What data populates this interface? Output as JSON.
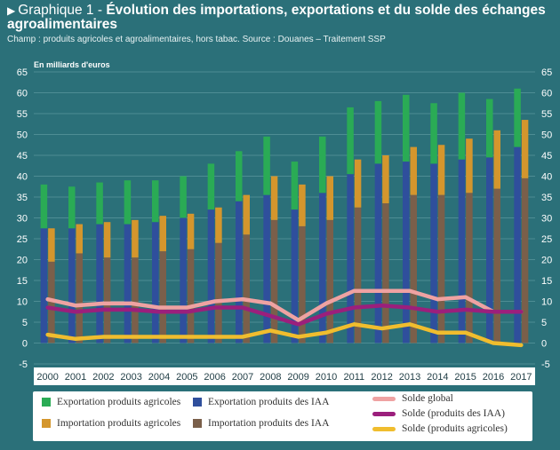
{
  "header": {
    "title_prefix": "Graphique 1 - ",
    "title_main": "Évolution des importations, exportations et du solde des échanges agroalimentaires",
    "subtitle": "Champ : produits agricoles et agroalimentaires, hors tabac. Source : Douanes – Traitement SSP",
    "arrow": "▶"
  },
  "chart_data": {
    "type": "bar",
    "ylabel": "En milliards d'euros",
    "ylim": [
      -5,
      65
    ],
    "yticks": [
      -5,
      0,
      5,
      10,
      15,
      20,
      25,
      30,
      35,
      40,
      45,
      50,
      55,
      60,
      65
    ],
    "categories": [
      "2000",
      "2001",
      "2002",
      "2003",
      "2004",
      "2005",
      "2006",
      "2007",
      "2008",
      "2009",
      "2010",
      "2011",
      "2012",
      "2013",
      "2014",
      "2015",
      "2016",
      "2017"
    ],
    "stacks": [
      {
        "stack": "export",
        "series": [
          {
            "name": "Exportation produits des IAA",
            "color": "#2f4f9c",
            "values": [
              27.5,
              27.5,
              28.5,
              28.5,
              29,
              30,
              32,
              34,
              35.5,
              32,
              36,
              40.5,
              43,
              43.5,
              43,
              44,
              44.5,
              47
            ]
          },
          {
            "name": "Exportation produits agricoles",
            "color": "#2aab55",
            "values": [
              10.5,
              10,
              10,
              10.5,
              10,
              10,
              11,
              12,
              14,
              11.5,
              13.5,
              16,
              15,
              16,
              14.5,
              16,
              14,
              14
            ]
          }
        ]
      },
      {
        "stack": "import",
        "series": [
          {
            "name": "Importation produits des IAA",
            "color": "#7a5f4a",
            "values": [
              19.5,
              21.5,
              20.5,
              20.5,
              22,
              22.5,
              24,
              26,
              29.5,
              28,
              29.5,
              32.5,
              33.5,
              35.5,
              35.5,
              36,
              37,
              39.5
            ]
          },
          {
            "name": "Importation produits agricoles",
            "color": "#d4962d",
            "values": [
              8,
              7,
              8.5,
              9,
              8.5,
              8.5,
              8.5,
              9.5,
              10.5,
              10,
              10.5,
              11.5,
              11.5,
              11.5,
              12,
              13,
              14,
              14
            ]
          }
        ]
      }
    ],
    "lines": [
      {
        "name": "Solde global",
        "color": "#efa2a2",
        "values": [
          10.5,
          9,
          9.5,
          9.5,
          8.5,
          8.5,
          10,
          10.5,
          9.5,
          5.5,
          9.5,
          12.5,
          12.5,
          12.5,
          10.5,
          11,
          7.5,
          7.5
        ]
      },
      {
        "name": "Solde (produits des IAA)",
        "color": "#9b1f7c",
        "values": [
          8.5,
          7.5,
          8,
          8,
          7.5,
          7.5,
          8.5,
          8.5,
          6.5,
          4.5,
          7,
          8.5,
          9,
          8.5,
          7.5,
          8,
          7.5,
          7.5
        ]
      },
      {
        "name": "Solde (produits agricoles)",
        "color": "#f0bd2e",
        "values": [
          2,
          1,
          1.5,
          1.5,
          1.5,
          1.5,
          1.5,
          1.5,
          3,
          1.5,
          2.5,
          4.5,
          3.5,
          4.5,
          2.5,
          2.5,
          0,
          -0.5
        ]
      }
    ],
    "grid": true,
    "legend_position": "bottom"
  },
  "legend": [
    {
      "label": "Exportation produits agricoles",
      "color": "#2aab55",
      "kind": "box"
    },
    {
      "label": "Exportation produits des IAA",
      "color": "#2f4f9c",
      "kind": "box"
    },
    {
      "label": "Solde global",
      "color": "#efa2a2",
      "kind": "line"
    },
    {
      "label": "Importation produits agricoles",
      "color": "#d4962d",
      "kind": "box"
    },
    {
      "label": "Importation produits des IAA",
      "color": "#7a5f4a",
      "kind": "box"
    },
    {
      "label": "Solde (produits des IAA)",
      "color": "#9b1f7c",
      "kind": "line"
    },
    {
      "label": "Solde (produits agricoles)",
      "color": "#f0bd2e",
      "kind": "line"
    }
  ],
  "colors": {
    "background": "#2b7079",
    "grid": "#5b979e",
    "axis_text": "#ffffff",
    "xaxis_band": "#ffffff"
  }
}
